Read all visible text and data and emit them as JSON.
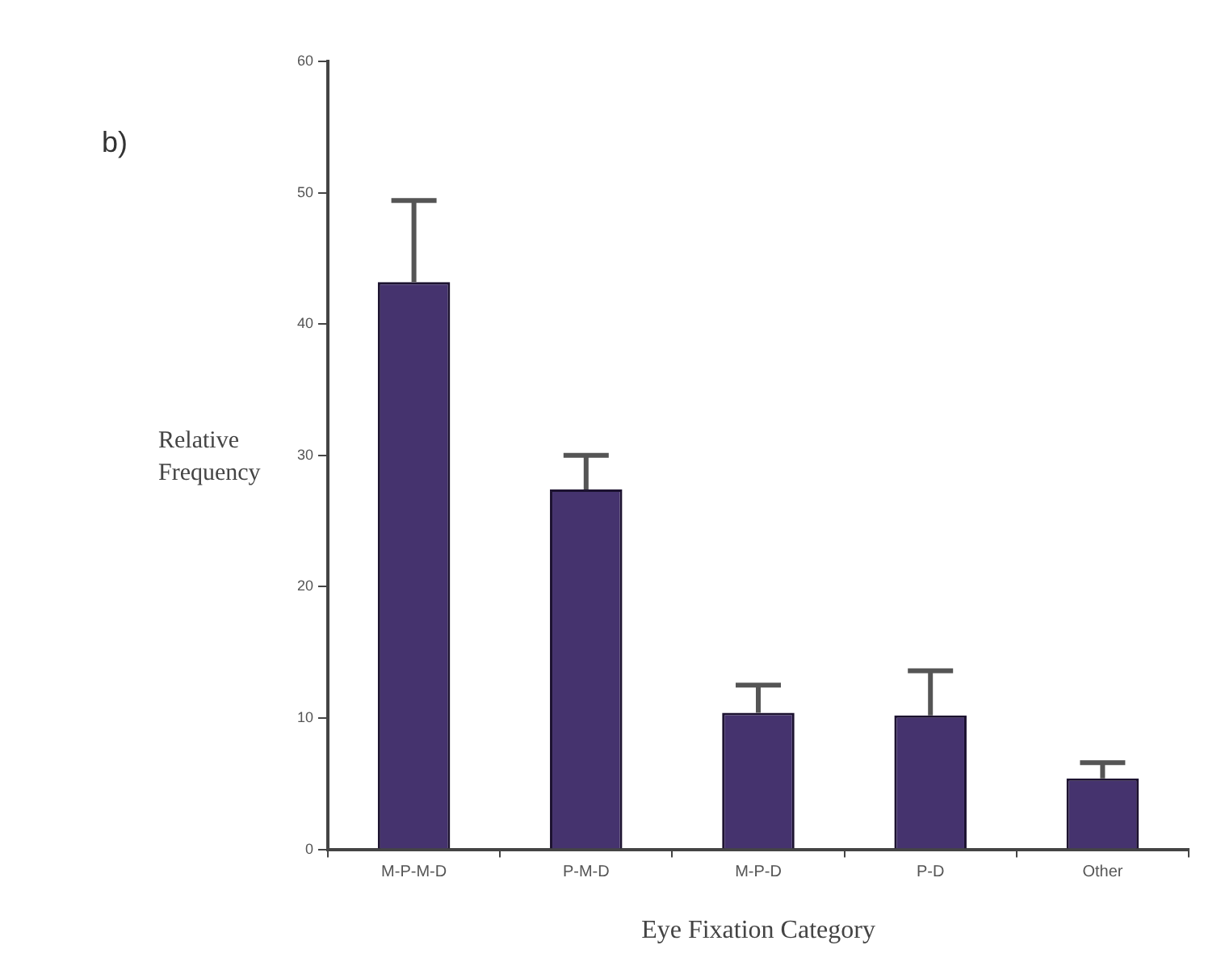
{
  "chart_data": {
    "type": "bar",
    "title": "b)",
    "xlabel": "Eye Fixation Category",
    "ylabel": "Relative Frequency",
    "categories": [
      "M-P-M-D",
      "P-M-D",
      "M-P-D",
      "P-D",
      "Other"
    ],
    "values": [
      43.2,
      27.4,
      10.4,
      10.2,
      5.4
    ],
    "errors": [
      [
        43.2,
        49.4
      ],
      [
        27.4,
        30.0
      ],
      [
        10.4,
        12.5
      ],
      [
        10.2,
        13.6
      ],
      [
        5.4,
        6.6
      ]
    ],
    "color": "#45336e",
    "ylim": [
      0,
      60
    ],
    "yticks": [
      0,
      10,
      20,
      30,
      40,
      50,
      60
    ],
    "grid": false,
    "legend": false
  }
}
